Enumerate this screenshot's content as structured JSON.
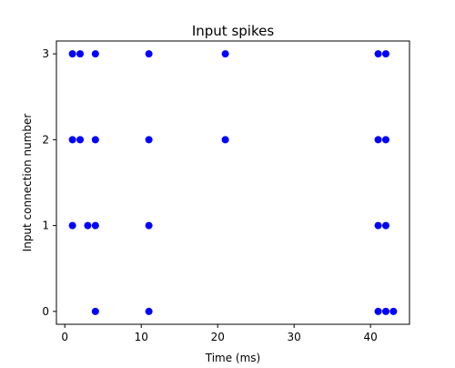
{
  "chart_data": {
    "type": "scatter",
    "title": "Input spikes",
    "xlabel": "Time (ms)",
    "ylabel": "Input connection number",
    "xlim": [
      -1.1,
      45.1
    ],
    "ylim": [
      -0.15,
      3.15
    ],
    "xticks": [
      0,
      10,
      20,
      30,
      40
    ],
    "yticks": [
      0,
      1,
      2,
      3
    ],
    "grid": false,
    "marker_color": "#0000ff",
    "points": [
      {
        "x": 1,
        "y": 3
      },
      {
        "x": 2,
        "y": 3
      },
      {
        "x": 4,
        "y": 3
      },
      {
        "x": 11,
        "y": 3
      },
      {
        "x": 21,
        "y": 3
      },
      {
        "x": 41,
        "y": 3
      },
      {
        "x": 42,
        "y": 3
      },
      {
        "x": 1,
        "y": 2
      },
      {
        "x": 2,
        "y": 2
      },
      {
        "x": 4,
        "y": 2
      },
      {
        "x": 11,
        "y": 2
      },
      {
        "x": 21,
        "y": 2
      },
      {
        "x": 41,
        "y": 2
      },
      {
        "x": 42,
        "y": 2
      },
      {
        "x": 1,
        "y": 1
      },
      {
        "x": 3,
        "y": 1
      },
      {
        "x": 4,
        "y": 1
      },
      {
        "x": 11,
        "y": 1
      },
      {
        "x": 41,
        "y": 1
      },
      {
        "x": 42,
        "y": 1
      },
      {
        "x": 4,
        "y": 0
      },
      {
        "x": 11,
        "y": 0
      },
      {
        "x": 41,
        "y": 0
      },
      {
        "x": 42,
        "y": 0
      },
      {
        "x": 43,
        "y": 0
      }
    ]
  }
}
